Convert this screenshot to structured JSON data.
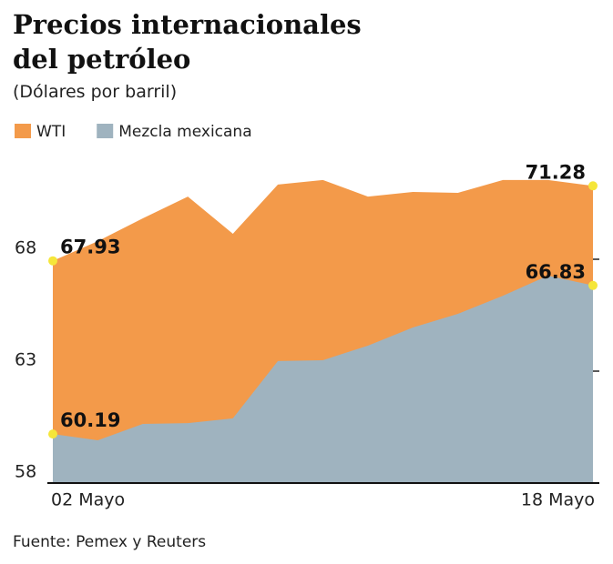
{
  "chart_data": {
    "type": "area",
    "title": "Precios internacionales del petróleo",
    "subtitle": "(Dólares por barril)",
    "source": "Fuente: Pemex y Reuters",
    "categories": [
      "02 Mayo",
      null,
      null,
      null,
      null,
      null,
      null,
      null,
      null,
      null,
      null,
      null,
      "18 Mayo"
    ],
    "series": [
      {
        "name": "WTI",
        "color": "#f39a4a",
        "values": [
          67.93,
          68.81,
          69.83,
          70.8,
          69.14,
          71.34,
          71.54,
          70.8,
          71.01,
          70.97,
          71.54,
          71.54,
          71.28
        ]
      },
      {
        "name": "Mezcla mexicana",
        "color": "#9fb3bf",
        "values": [
          60.19,
          59.91,
          60.64,
          60.68,
          60.89,
          63.45,
          63.49,
          64.14,
          64.95,
          65.56,
          66.37,
          67.27,
          66.83
        ]
      }
    ],
    "ylim": [
      58,
      73
    ],
    "yticks": [
      58,
      63,
      68
    ]
  }
}
